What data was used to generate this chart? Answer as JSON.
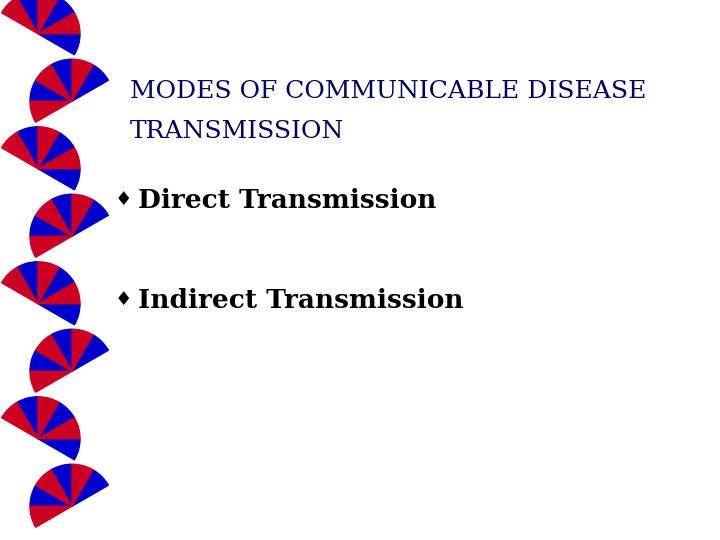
{
  "background_color": "#ffffff",
  "title_line1": "MODES OF COMMUNICABLE DISEASE",
  "title_line2": "TRANSMISSION",
  "bullet1": "Direct Transmission",
  "bullet2": "Indirect Transmission",
  "title_color": "#000066",
  "bullet_color": "#000000",
  "bullet_marker": "♦",
  "title_fontsize": 18,
  "bullet_fontsize": 19,
  "spiral_blue": "#0000CC",
  "spiral_red": "#CC0022",
  "num_groups": 8,
  "wedges_per_group": 5
}
